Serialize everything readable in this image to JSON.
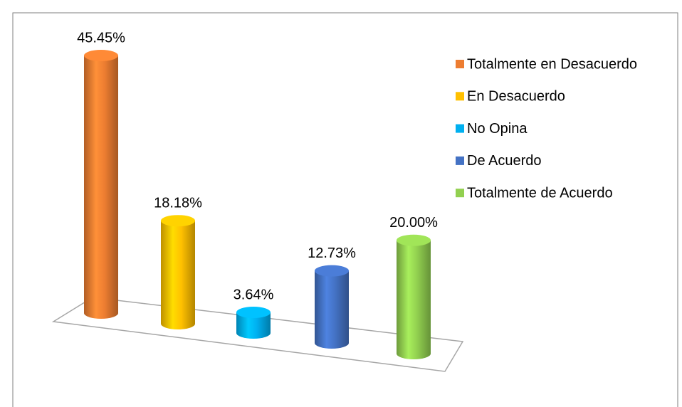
{
  "chart_data": {
    "type": "bar",
    "categories": [
      "Totalmente en Desacuerdo",
      "En Desacuerdo",
      "No Opina",
      "De Acuerdo",
      "Totalmente de Acuerdo"
    ],
    "values": [
      45.45,
      18.18,
      3.64,
      12.73,
      20.0
    ],
    "value_labels": [
      "45.45%",
      "18.18%",
      "3.64%",
      "12.73%",
      "20.00%"
    ],
    "colors": [
      "#ed7d31",
      "#ffc000",
      "#00b0f0",
      "#4472c4",
      "#92d050"
    ],
    "legend": "right"
  }
}
